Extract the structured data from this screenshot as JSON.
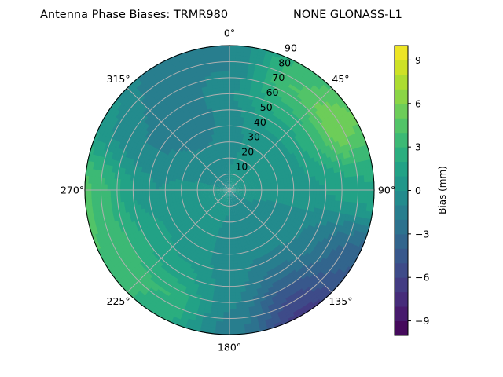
{
  "chart_data": {
    "type": "heatmap",
    "subtype": "polar-contour",
    "title_left": "Antenna Phase Biases: TRMR980",
    "title_right": "NONE GLONASS-L1",
    "angular_ticks": [
      "0°",
      "45°",
      "90°",
      "135°",
      "180°",
      "225°",
      "270°",
      "315°"
    ],
    "angular_tick_values": [
      0,
      45,
      90,
      135,
      180,
      225,
      270,
      315
    ],
    "radial_ticks": [
      "10",
      "20",
      "30",
      "40",
      "50",
      "60",
      "70",
      "80",
      "90"
    ],
    "radial_tick_values": [
      10,
      20,
      30,
      40,
      50,
      60,
      70,
      80,
      90
    ],
    "radial_range": [
      0,
      90
    ],
    "angular_direction": "clockwise",
    "angular_zero": "north",
    "grid": true,
    "colorbar": {
      "label": "Bias (mm)",
      "range": [
        -10,
        10
      ],
      "levels": 20,
      "ticks": [
        "9",
        "6",
        "3",
        "0",
        "−3",
        "−6",
        "−9"
      ],
      "tick_values": [
        9,
        6,
        3,
        0,
        -3,
        -6,
        -9
      ],
      "colormap": "viridis",
      "colormap_stops": [
        "#440154",
        "#482475",
        "#414487",
        "#355f8d",
        "#2a788e",
        "#21918c",
        "#22a884",
        "#44bf70",
        "#7ad151",
        "#bddf26",
        "#fde725"
      ]
    },
    "grid_azimuths": [
      0,
      30,
      60,
      90,
      120,
      150,
      180,
      210,
      240,
      270,
      300,
      330
    ],
    "grid_radii": [
      0,
      15,
      30,
      45,
      60,
      75,
      90
    ],
    "bias_values": [
      [
        0,
        0,
        -0.5,
        -0.5,
        0,
        -1,
        -1
      ],
      [
        0,
        0.3,
        0.5,
        1,
        2.5,
        4,
        3
      ],
      [
        0,
        0.3,
        0.5,
        1,
        3,
        6,
        5
      ],
      [
        0,
        0.2,
        0.3,
        0.5,
        1,
        1.5,
        2
      ],
      [
        0,
        0,
        -0.3,
        -0.5,
        -1.5,
        -3,
        -4
      ],
      [
        0,
        -0.2,
        -0.5,
        -1,
        -2.5,
        -5,
        -6.5
      ],
      [
        0,
        0,
        -0.3,
        -0.5,
        -0.5,
        -1,
        -1.5
      ],
      [
        0,
        0.2,
        0.3,
        0.5,
        1.5,
        3,
        2.5
      ],
      [
        0,
        0.3,
        0.5,
        1,
        2,
        3.5,
        4
      ],
      [
        0,
        0.2,
        0.3,
        0,
        1,
        3,
        4.5
      ],
      [
        0,
        -0.2,
        -0.5,
        -1,
        -1,
        -0.5,
        0.5
      ],
      [
        0,
        -0.3,
        -1,
        -2,
        -2,
        -1.5,
        -1.5
      ]
    ]
  }
}
